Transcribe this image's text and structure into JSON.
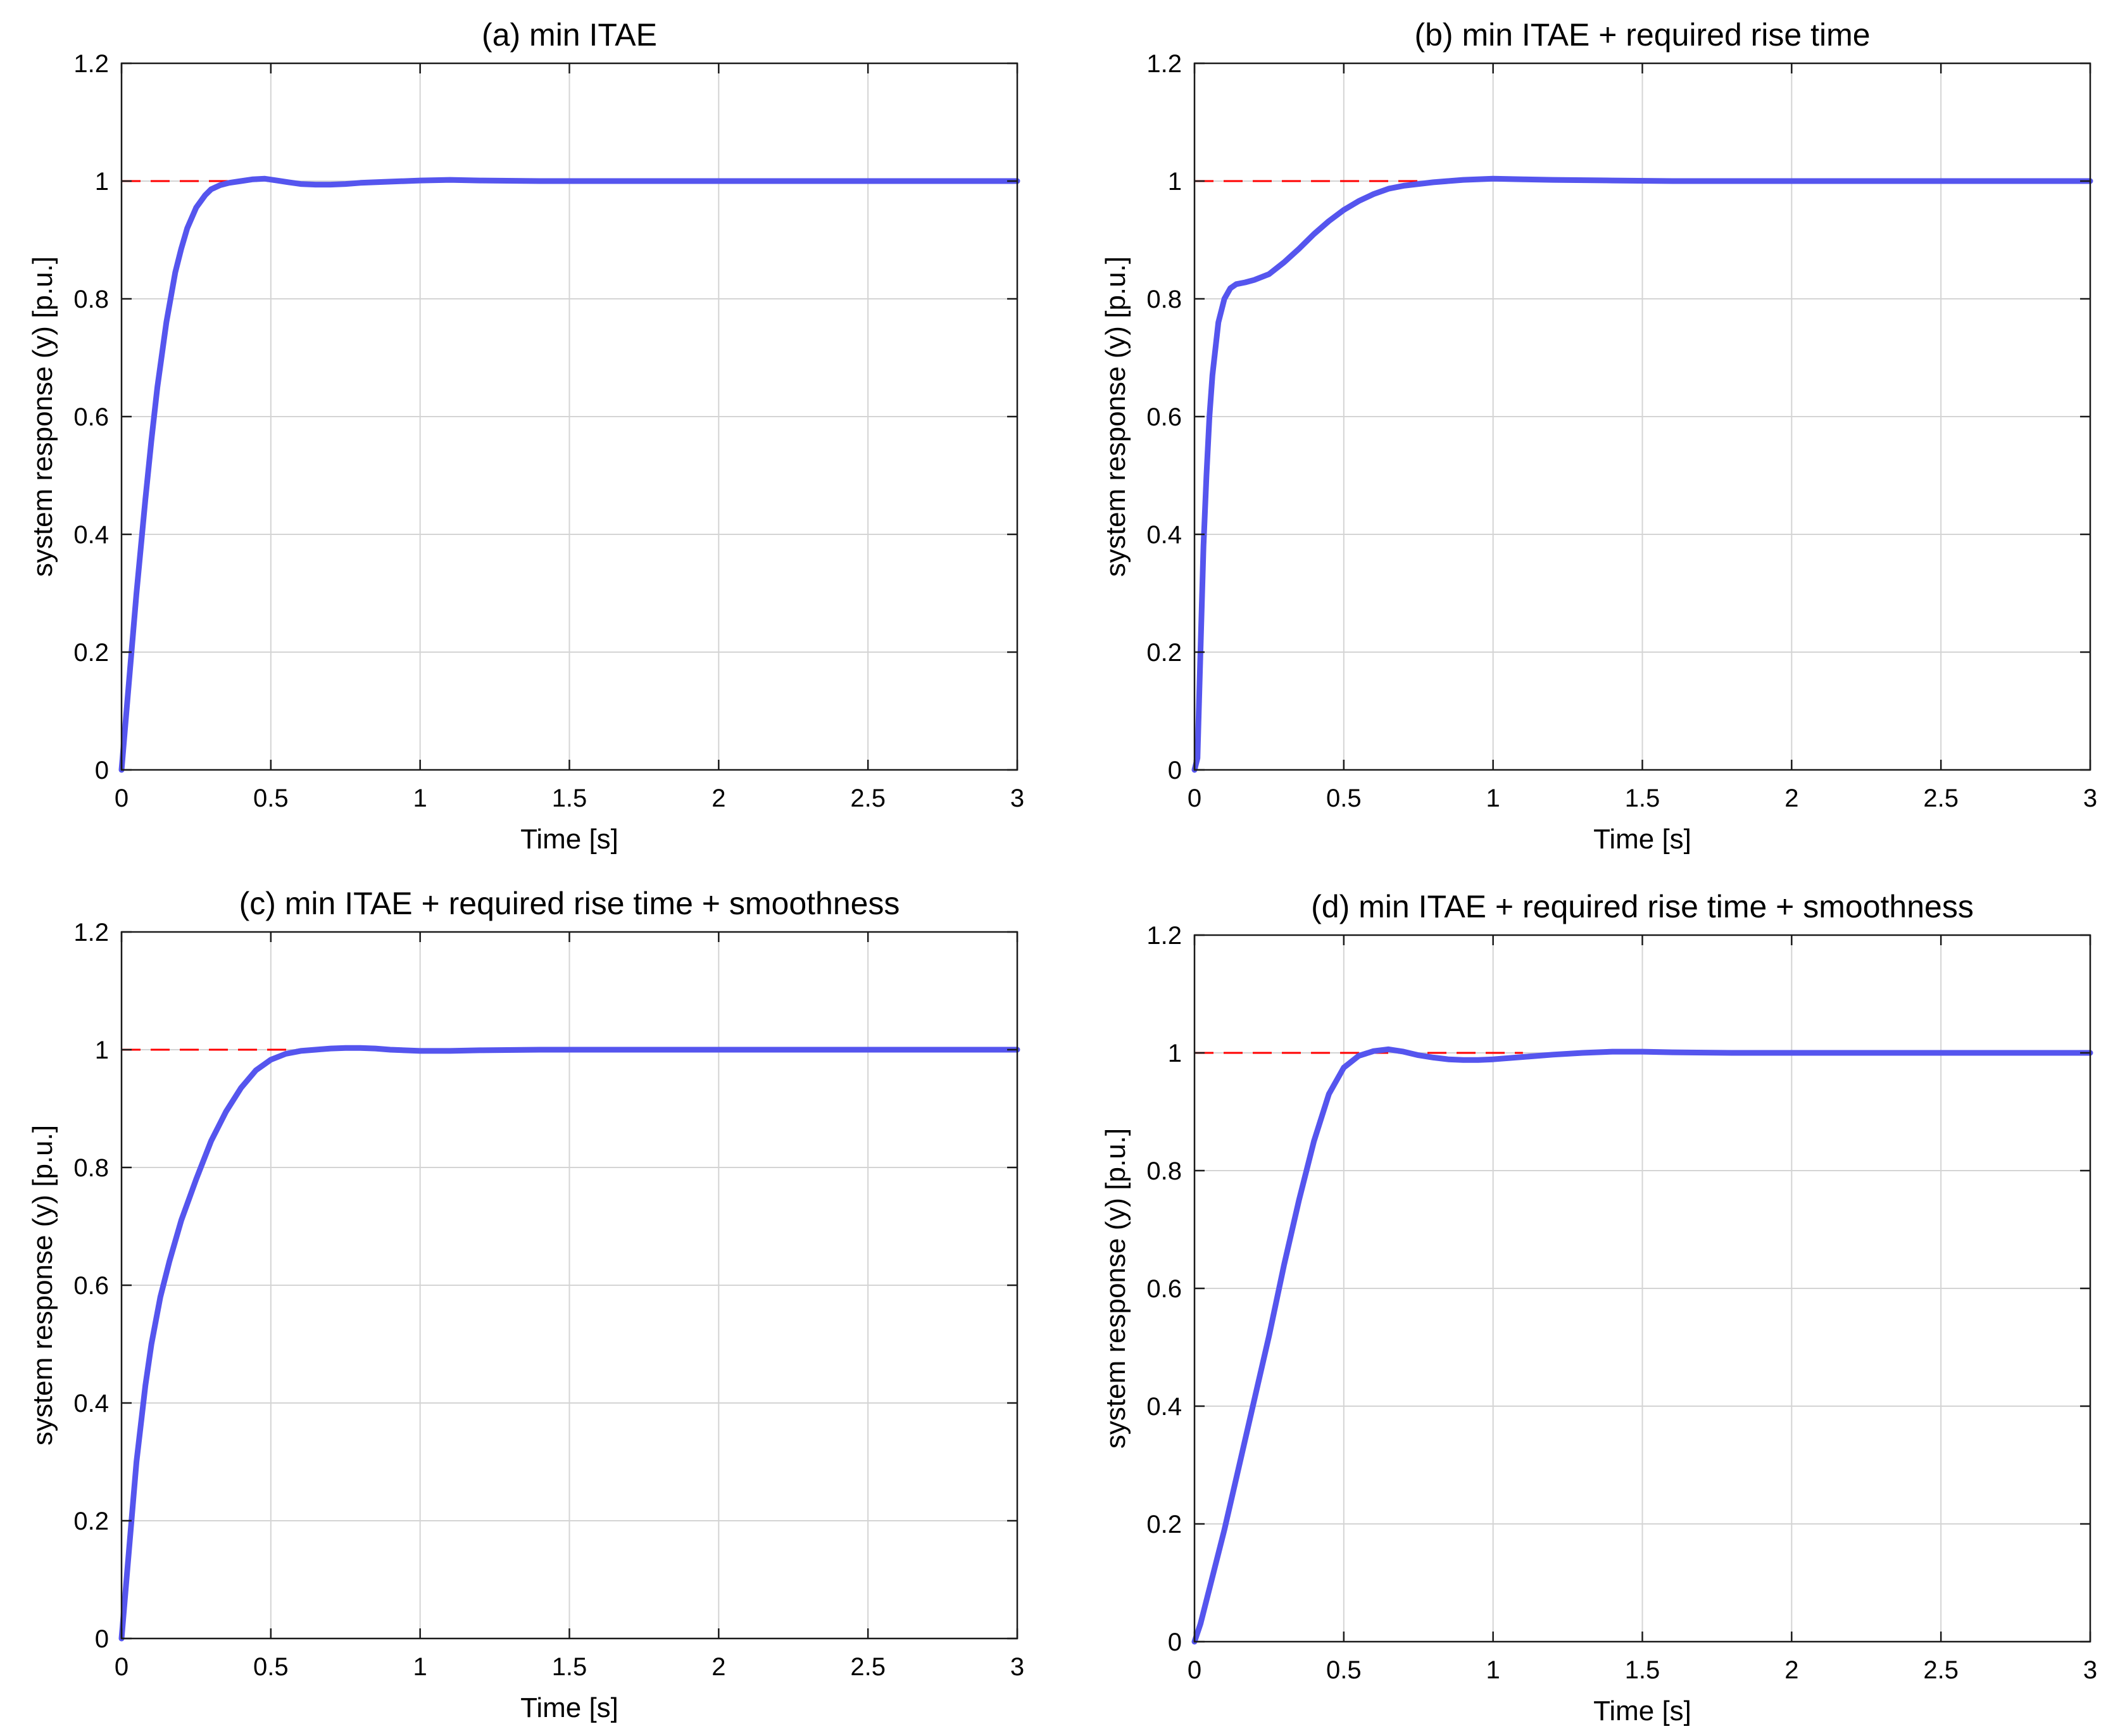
{
  "colors": {
    "response": "#5555ee",
    "reference": "#ff0000"
  },
  "chart_data": [
    {
      "type": "line",
      "title": "(a) min ITAE",
      "xlabel": "Time [s]",
      "ylabel": "system response (y) [p.u.]",
      "xlim": [
        0,
        3
      ],
      "ylim": [
        0,
        1.2
      ],
      "xticks": [
        0,
        0.5,
        1,
        1.5,
        2,
        2.5,
        3
      ],
      "xtick_labels": [
        "0",
        "0.5",
        "1",
        "1.5",
        "2",
        "2.5",
        "3"
      ],
      "yticks": [
        0,
        0.2,
        0.4,
        0.6,
        0.8,
        1,
        1.2
      ],
      "ytick_labels": [
        "0",
        "0.2",
        "0.4",
        "0.6",
        "0.8",
        "1",
        "1.2"
      ],
      "grid": true,
      "reference": {
        "y": 1,
        "x": [
          0,
          0.5
        ]
      },
      "series": [
        {
          "x": [
            0,
            0.02,
            0.05,
            0.08,
            0.1,
            0.12,
            0.15,
            0.18,
            0.2,
            0.22,
            0.25,
            0.28,
            0.3,
            0.33,
            0.36,
            0.4,
            0.44,
            0.48,
            0.52,
            0.56,
            0.6,
            0.65,
            0.7,
            0.75,
            0.8,
            0.9,
            1.0,
            1.1,
            1.2,
            1.4,
            1.6,
            2.0,
            2.5,
            3.0
          ],
          "y": [
            0,
            0.12,
            0.3,
            0.46,
            0.56,
            0.65,
            0.76,
            0.845,
            0.885,
            0.92,
            0.955,
            0.976,
            0.986,
            0.993,
            0.997,
            1.0,
            1.003,
            1.004,
            1.001,
            0.998,
            0.995,
            0.994,
            0.994,
            0.995,
            0.997,
            0.999,
            1.001,
            1.002,
            1.001,
            1.0,
            1.0,
            1.0,
            1.0,
            1.0
          ]
        }
      ]
    },
    {
      "type": "line",
      "title": "(b) min ITAE + required rise time",
      "xlabel": "Time [s]",
      "ylabel": "system response (y) [p.u.]",
      "xlim": [
        0,
        3
      ],
      "ylim": [
        0,
        1.2
      ],
      "xticks": [
        0,
        0.5,
        1,
        1.5,
        2,
        2.5,
        3
      ],
      "xtick_labels": [
        "0",
        "0.5",
        "1",
        "1.5",
        "2",
        "2.5",
        "3"
      ],
      "yticks": [
        0,
        0.2,
        0.4,
        0.6,
        0.8,
        1,
        1.2
      ],
      "ytick_labels": [
        "0",
        "0.2",
        "0.4",
        "0.6",
        "0.8",
        "1",
        "1.2"
      ],
      "grid": true,
      "reference": {
        "y": 1,
        "x": [
          0,
          0.8
        ]
      },
      "series": [
        {
          "x": [
            0,
            0.01,
            0.02,
            0.03,
            0.04,
            0.05,
            0.06,
            0.08,
            0.1,
            0.12,
            0.14,
            0.17,
            0.2,
            0.25,
            0.3,
            0.35,
            0.4,
            0.45,
            0.5,
            0.55,
            0.6,
            0.65,
            0.7,
            0.8,
            0.9,
            1.0,
            1.1,
            1.2,
            1.4,
            1.6,
            2.0,
            2.5,
            3.0
          ],
          "y": [
            0,
            0.02,
            0.2,
            0.38,
            0.5,
            0.6,
            0.67,
            0.76,
            0.8,
            0.818,
            0.825,
            0.828,
            0.832,
            0.842,
            0.862,
            0.885,
            0.91,
            0.932,
            0.951,
            0.966,
            0.978,
            0.987,
            0.992,
            0.998,
            1.002,
            1.004,
            1.003,
            1.002,
            1.001,
            1.0,
            1.0,
            1.0,
            1.0
          ]
        }
      ]
    },
    {
      "type": "line",
      "title": "(c) min ITAE + required rise time + smoothness",
      "xlabel": "Time [s]",
      "ylabel": "system response (y) [p.u.]",
      "xlim": [
        0,
        3
      ],
      "ylim": [
        0,
        1.2
      ],
      "xticks": [
        0,
        0.5,
        1,
        1.5,
        2,
        2.5,
        3
      ],
      "xtick_labels": [
        "0",
        "0.5",
        "1",
        "1.5",
        "2",
        "2.5",
        "3"
      ],
      "yticks": [
        0,
        0.2,
        0.4,
        0.6,
        0.8,
        1,
        1.2
      ],
      "ytick_labels": [
        "0",
        "0.2",
        "0.4",
        "0.6",
        "0.8",
        "1",
        "1.2"
      ],
      "grid": true,
      "reference": {
        "y": 1,
        "x": [
          0,
          0.7
        ]
      },
      "series": [
        {
          "x": [
            0,
            0.02,
            0.05,
            0.08,
            0.1,
            0.13,
            0.16,
            0.2,
            0.25,
            0.3,
            0.35,
            0.4,
            0.45,
            0.5,
            0.55,
            0.6,
            0.65,
            0.7,
            0.75,
            0.8,
            0.85,
            0.9,
            1.0,
            1.1,
            1.2,
            1.4,
            1.6,
            2.0,
            2.5,
            3.0
          ],
          "y": [
            0,
            0.12,
            0.3,
            0.43,
            0.5,
            0.58,
            0.64,
            0.71,
            0.78,
            0.845,
            0.895,
            0.935,
            0.965,
            0.983,
            0.993,
            0.998,
            1.0,
            1.002,
            1.003,
            1.003,
            1.002,
            1.0,
            0.998,
            0.998,
            0.999,
            1.0,
            1.0,
            1.0,
            1.0,
            1.0
          ]
        }
      ]
    },
    {
      "type": "line",
      "title": "(d) min ITAE + required rise time + smoothness",
      "xlabel": "Time [s]",
      "ylabel": "system response (y) [p.u.]",
      "xlim": [
        0,
        3
      ],
      "ylim": [
        0,
        1.2
      ],
      "xticks": [
        0,
        0.5,
        1,
        1.5,
        2,
        2.5,
        3
      ],
      "xtick_labels": [
        "0",
        "0.5",
        "1",
        "1.5",
        "2",
        "2.5",
        "3"
      ],
      "yticks": [
        0,
        0.2,
        0.4,
        0.6,
        0.8,
        1,
        1.2
      ],
      "ytick_labels": [
        "0",
        "0.2",
        "0.4",
        "0.6",
        "0.8",
        "1",
        "1.2"
      ],
      "grid": true,
      "reference": {
        "y": 1,
        "x": [
          0,
          1.1
        ]
      },
      "series": [
        {
          "x": [
            0,
            0.02,
            0.05,
            0.1,
            0.15,
            0.2,
            0.25,
            0.3,
            0.35,
            0.4,
            0.45,
            0.5,
            0.55,
            0.6,
            0.65,
            0.7,
            0.75,
            0.8,
            0.85,
            0.9,
            0.95,
            1.0,
            1.1,
            1.2,
            1.3,
            1.4,
            1.5,
            1.6,
            1.8,
            2.0,
            2.5,
            3.0
          ],
          "y": [
            0,
            0.03,
            0.09,
            0.19,
            0.3,
            0.41,
            0.52,
            0.64,
            0.75,
            0.85,
            0.93,
            0.975,
            0.995,
            1.003,
            1.006,
            1.002,
            0.996,
            0.992,
            0.989,
            0.988,
            0.988,
            0.989,
            0.993,
            0.997,
            1.0,
            1.002,
            1.002,
            1.001,
            1.0,
            1.0,
            1.0,
            1.0
          ]
        }
      ]
    }
  ]
}
